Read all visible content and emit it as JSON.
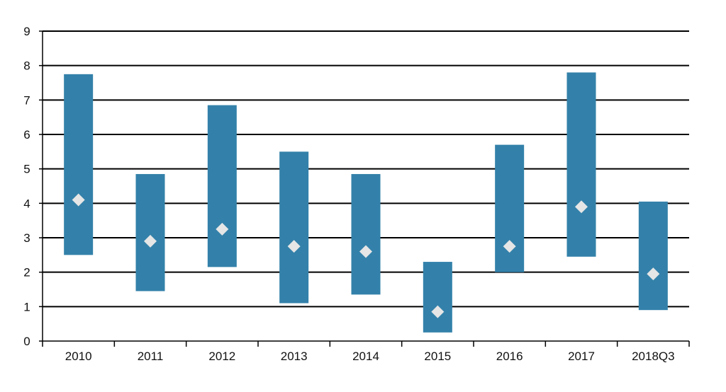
{
  "chart_data": {
    "type": "range-bar",
    "title": "",
    "xlabel": "",
    "ylabel": "",
    "categories": [
      "2010",
      "2011",
      "2012",
      "2013",
      "2014",
      "2015",
      "2016",
      "2017",
      "2018Q3"
    ],
    "series": [
      {
        "low": [
          2.5,
          1.45,
          2.15,
          1.1,
          1.35,
          0.25,
          2.0,
          2.45,
          0.9
        ],
        "high": [
          7.75,
          4.85,
          6.85,
          5.5,
          4.85,
          2.3,
          5.7,
          7.8,
          4.05
        ],
        "marker": [
          4.1,
          2.9,
          3.25,
          2.75,
          2.6,
          0.85,
          2.75,
          3.9,
          1.95
        ]
      }
    ],
    "ylim": [
      0,
      9
    ],
    "yticks": [
      0,
      1,
      2,
      3,
      4,
      5,
      6,
      7,
      8,
      9
    ],
    "grid": true,
    "legend": "none",
    "colors": {
      "bar": "#3381aa",
      "marker": "#e6e6e6",
      "grid": "#000000",
      "text": "#111111"
    }
  }
}
